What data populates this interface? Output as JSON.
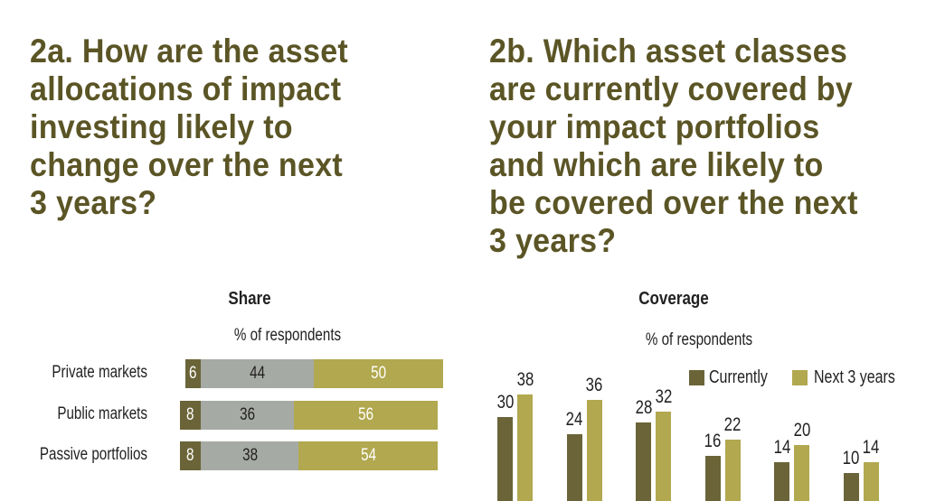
{
  "colors": {
    "title": "#5b5526",
    "dark": "#6b6438",
    "grey": "#a6aaa4",
    "gold": "#b1a84f"
  },
  "chart_data": [
    {
      "type": "bar",
      "orientation": "horizontal-stacked",
      "title": "2a. How are the asset allocations of impact investing likely to change over the next 3 years?",
      "subtitle": "Share",
      "unit": "% of respondents",
      "categories": [
        "Private markets",
        "Public markets",
        "Passive portfolios"
      ],
      "series": [
        {
          "values": [
            6,
            8,
            8
          ],
          "color": "#6b6438"
        },
        {
          "values": [
            44,
            36,
            38
          ],
          "color": "#a6aaa4"
        },
        {
          "values": [
            50,
            56,
            54
          ],
          "color": "#b1a84f"
        }
      ]
    },
    {
      "type": "bar",
      "orientation": "vertical-grouped",
      "title": "2b. Which asset classes are currently covered by your impact portfolios and which are likely to be covered over the next 3 years?",
      "subtitle": "Coverage",
      "unit": "% of respondents",
      "legend_position": "top-right",
      "series": [
        {
          "name": "Currently",
          "values": [
            30,
            24,
            28,
            16,
            14,
            10
          ],
          "color": "#6b6438"
        },
        {
          "name": "Next 3 years",
          "values": [
            38,
            36,
            32,
            22,
            20,
            14
          ],
          "color": "#b1a84f"
        }
      ]
    }
  ],
  "left": {
    "title": "2a. How are the asset\nallocations of impact\ninvesting likely to\nchange over the next\n3 years?",
    "subtitle": "Share",
    "unit": "% of respondents"
  },
  "right": {
    "title": "2b. Which asset classes\nare currently covered by\nyour impact portfolios\nand which are likely to\nbe covered over the next\n3 years?",
    "subtitle": "Coverage",
    "unit": "% of respondents",
    "legend": [
      "Currently",
      "Next 3 years"
    ]
  }
}
